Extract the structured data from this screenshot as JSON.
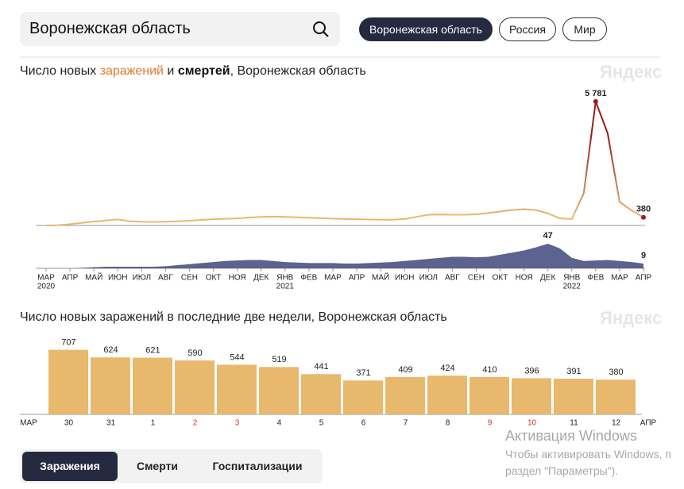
{
  "search": {
    "query": "Воронежская область"
  },
  "regions": [
    {
      "label": "Воронежская область",
      "active": true
    },
    {
      "label": "Россия",
      "active": false
    },
    {
      "label": "Мир",
      "active": false
    }
  ],
  "watermark": "Яндекс",
  "chart_data": [
    {
      "type": "line",
      "title_parts": [
        "Число новых ",
        "заражений",
        " и ",
        "смертей",
        ", Воронежская область"
      ],
      "title_colors": [
        "#222222",
        "#e07a2e",
        "#222222",
        "#111111",
        "#222222"
      ],
      "title_bold": [
        false,
        false,
        false,
        true,
        false
      ],
      "xlim": [
        0,
        25
      ],
      "xticks": [
        {
          "value": 0,
          "label": "МАР",
          "sublabel": "2020"
        },
        {
          "value": 1,
          "label": "АПР"
        },
        {
          "value": 2,
          "label": "МАЙ"
        },
        {
          "value": 3,
          "label": "ИЮН"
        },
        {
          "value": 4,
          "label": "ИЮЛ"
        },
        {
          "value": 5,
          "label": "АВГ"
        },
        {
          "value": 6,
          "label": "СЕН"
        },
        {
          "value": 7,
          "label": "ОКТ"
        },
        {
          "value": 8,
          "label": "НОЯ"
        },
        {
          "value": 9,
          "label": "ДЕК"
        },
        {
          "value": 10,
          "label": "ЯНВ",
          "sublabel": "2021"
        },
        {
          "value": 11,
          "label": "ФЕВ"
        },
        {
          "value": 12,
          "label": "МАР"
        },
        {
          "value": 13,
          "label": "АПР"
        },
        {
          "value": 14,
          "label": "МАЙ"
        },
        {
          "value": 15,
          "label": "ИЮН"
        },
        {
          "value": 16,
          "label": "ИЮЛ"
        },
        {
          "value": 17,
          "label": "АВГ"
        },
        {
          "value": 18,
          "label": "СЕН"
        },
        {
          "value": 19,
          "label": "ОКТ"
        },
        {
          "value": 20,
          "label": "НОЯ"
        },
        {
          "value": 21,
          "label": "ДЕК"
        },
        {
          "value": 22,
          "label": "ЯНВ",
          "sublabel": "2022"
        },
        {
          "value": 23,
          "label": "ФЕВ"
        },
        {
          "value": 24,
          "label": "МАР"
        },
        {
          "value": 25,
          "label": "АПР"
        }
      ],
      "x": [
        0,
        0.5,
        1,
        1.5,
        2,
        2.5,
        3,
        3.5,
        4,
        4.5,
        5,
        5.5,
        6,
        6.5,
        7,
        7.5,
        8,
        8.5,
        9,
        9.5,
        10,
        10.5,
        11,
        11.5,
        12,
        12.5,
        13,
        13.5,
        14,
        14.5,
        15,
        15.5,
        16,
        16.5,
        17,
        17.5,
        18,
        18.5,
        19,
        19.5,
        20,
        20.5,
        21,
        21.5,
        22,
        22.5,
        23,
        23.5,
        24,
        24.5,
        25
      ],
      "ylim": [
        0,
        6000
      ],
      "y2lim": [
        0,
        50
      ],
      "series": [
        {
          "name": "заражений",
          "type": "line",
          "color": "#e8b86d",
          "peak_color": "#9b1c1c",
          "values": [
            0,
            10,
            60,
            120,
            180,
            230,
            280,
            200,
            170,
            160,
            170,
            190,
            220,
            260,
            290,
            310,
            330,
            370,
            400,
            410,
            400,
            380,
            360,
            340,
            320,
            300,
            290,
            280,
            270,
            270,
            300,
            400,
            500,
            510,
            500,
            500,
            520,
            580,
            650,
            720,
            760,
            720,
            560,
            330,
            300,
            1500,
            5781,
            4300,
            1100,
            700,
            380
          ],
          "value_labels": [
            null,
            null,
            null,
            null,
            null,
            null,
            null,
            null,
            null,
            null,
            null,
            null,
            null,
            null,
            null,
            null,
            null,
            null,
            null,
            null,
            null,
            null,
            null,
            null,
            null,
            null,
            null,
            null,
            null,
            null,
            null,
            null,
            null,
            null,
            null,
            null,
            null,
            null,
            null,
            null,
            null,
            null,
            null,
            null,
            null,
            null,
            "5 781",
            null,
            null,
            null,
            "380"
          ]
        },
        {
          "name": "смертей",
          "type": "area",
          "axis": "y2",
          "color": "#4a5282",
          "values": [
            0,
            0,
            0,
            1,
            2,
            3,
            3,
            3,
            3,
            3,
            4,
            6,
            8,
            10,
            12,
            14,
            15,
            16,
            16,
            14,
            12,
            11,
            10,
            10,
            10,
            9,
            9,
            10,
            11,
            12,
            14,
            16,
            18,
            20,
            22,
            22,
            21,
            22,
            26,
            30,
            34,
            40,
            47,
            38,
            20,
            14,
            15,
            16,
            14,
            12,
            9
          ],
          "value_labels": [
            null,
            null,
            null,
            null,
            null,
            null,
            null,
            null,
            null,
            null,
            null,
            null,
            null,
            null,
            null,
            null,
            null,
            null,
            null,
            null,
            null,
            null,
            null,
            null,
            null,
            null,
            null,
            null,
            null,
            null,
            null,
            null,
            null,
            null,
            null,
            null,
            null,
            null,
            null,
            null,
            null,
            null,
            "47",
            null,
            null,
            null,
            null,
            null,
            null,
            null,
            "9"
          ]
        }
      ]
    },
    {
      "type": "bar",
      "title": "Число новых заражений в последние две недели, Воронежская область",
      "categories": [
        "30",
        "31",
        "1",
        "2",
        "3",
        "4",
        "5",
        "6",
        "7",
        "8",
        "9",
        "10",
        "11",
        "12"
      ],
      "category_colors": [
        "#222222",
        "#222222",
        "#222222",
        "#d0342c",
        "#d0342c",
        "#222222",
        "#222222",
        "#222222",
        "#222222",
        "#222222",
        "#d0342c",
        "#d0342c",
        "#222222",
        "#222222"
      ],
      "axis_end_labels": [
        "МАР",
        "АПР"
      ],
      "values": [
        707,
        624,
        621,
        590,
        544,
        519,
        441,
        371,
        409,
        424,
        410,
        396,
        391,
        380
      ],
      "color": "#e8b86d",
      "ylim": [
        0,
        800
      ]
    }
  ],
  "os_notice": [
    "Активация Windows",
    "Чтобы активировать Windows, п",
    "раздел \"Параметры\")."
  ],
  "tabs": [
    {
      "label": "Заражения",
      "active": true
    },
    {
      "label": "Смерти",
      "active": false
    },
    {
      "label": "Госпитализации",
      "active": false
    }
  ]
}
